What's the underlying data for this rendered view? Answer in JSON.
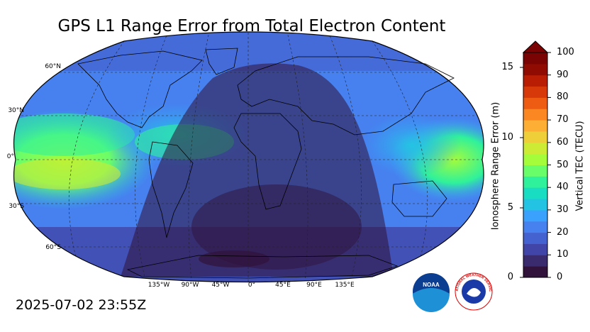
{
  "title": "GPS L1 Range Error from Total Electron Content",
  "timestamp": "2025-07-02 23:55Z",
  "map": {
    "projection": "robinson",
    "lat_labels": [
      "60°N",
      "30°N",
      "0°",
      "30°S",
      "60°S"
    ],
    "lon_labels": [
      "135°W",
      "90°W",
      "45°W",
      "0°",
      "45°E",
      "90°E",
      "135°E"
    ]
  },
  "colorbar": {
    "left_axis_label": "Ionosphere Range Error (m)",
    "right_axis_label": "Vertical TEC (TECU)",
    "left_ticks": [
      "0",
      "5",
      "10",
      "15"
    ],
    "right_ticks": [
      "0",
      "10",
      "20",
      "30",
      "40",
      "50",
      "60",
      "70",
      "80",
      "90",
      "100"
    ],
    "colors": [
      "#30123b",
      "#3a2a6e",
      "#4145a8",
      "#4563d0",
      "#4681ef",
      "#3aa2fc",
      "#23c4e3",
      "#18ddc2",
      "#2ff19b",
      "#6afd6a",
      "#a4fc3b",
      "#cdeb34",
      "#eecf3a",
      "#fcaf34",
      "#fb8723",
      "#ee5b12",
      "#d8390a",
      "#b91e04",
      "#900c02",
      "#7a0403"
    ]
  },
  "logos": {
    "noaa": "NOAA",
    "nws": "NATIONAL WEATHER SERVICE"
  }
}
